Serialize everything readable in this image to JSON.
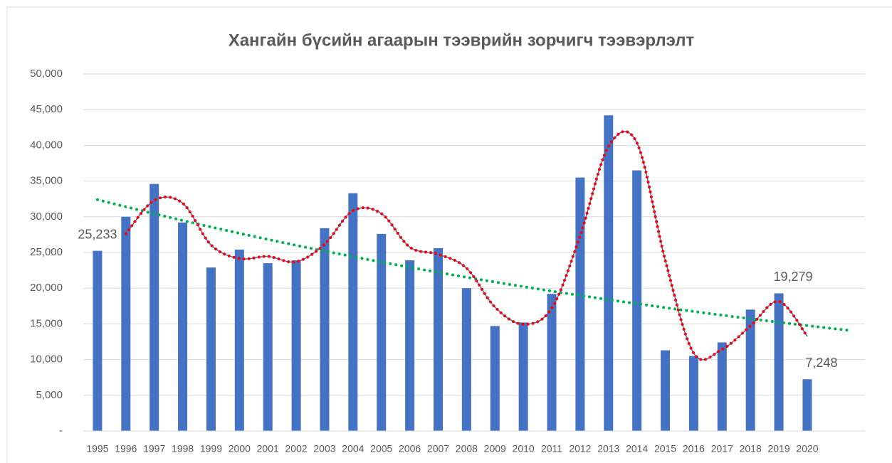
{
  "chart_data": {
    "type": "bar",
    "title": "Хангайн бүсийн агаарын тээврийн зорчигч тээвэрлэлт",
    "categories": [
      "1995",
      "1996",
      "1997",
      "1998",
      "1999",
      "2000",
      "2001",
      "2002",
      "2003",
      "2004",
      "2005",
      "2006",
      "2007",
      "2008",
      "2009",
      "2010",
      "2011",
      "2012",
      "2013",
      "2014",
      "2015",
      "2016",
      "2017",
      "2018",
      "2019",
      "2020"
    ],
    "values": [
      25233,
      30000,
      34600,
      29200,
      22900,
      25400,
      23500,
      23900,
      28400,
      33300,
      27600,
      23900,
      25600,
      20000,
      14700,
      15200,
      19200,
      35500,
      44200,
      36500,
      11300,
      10500,
      12400,
      17000,
      19279,
      7248
    ],
    "value_labels": [
      "25,233",
      null,
      null,
      null,
      null,
      null,
      null,
      null,
      null,
      null,
      null,
      null,
      null,
      null,
      null,
      null,
      null,
      null,
      null,
      null,
      null,
      null,
      null,
      null,
      "19,279",
      "7,248"
    ],
    "color": "#4472c4",
    "moving_average_color": "#ff0000",
    "trendline_color": "#00b050",
    "ylim": [
      0,
      50000
    ],
    "yticks": [
      {
        "value": 0,
        "label": "-"
      },
      {
        "value": 5000,
        "label": "5,000"
      },
      {
        "value": 10000,
        "label": "10,000"
      },
      {
        "value": 15000,
        "label": "15,000"
      },
      {
        "value": 20000,
        "label": "20,000"
      },
      {
        "value": 25000,
        "label": "25,000"
      },
      {
        "value": 30000,
        "label": "30,000"
      },
      {
        "value": 35000,
        "label": "35,000"
      },
      {
        "value": 40000,
        "label": "40,000"
      },
      {
        "value": 45000,
        "label": "45,000"
      },
      {
        "value": 50000,
        "label": "50,000"
      }
    ],
    "grid": true
  }
}
